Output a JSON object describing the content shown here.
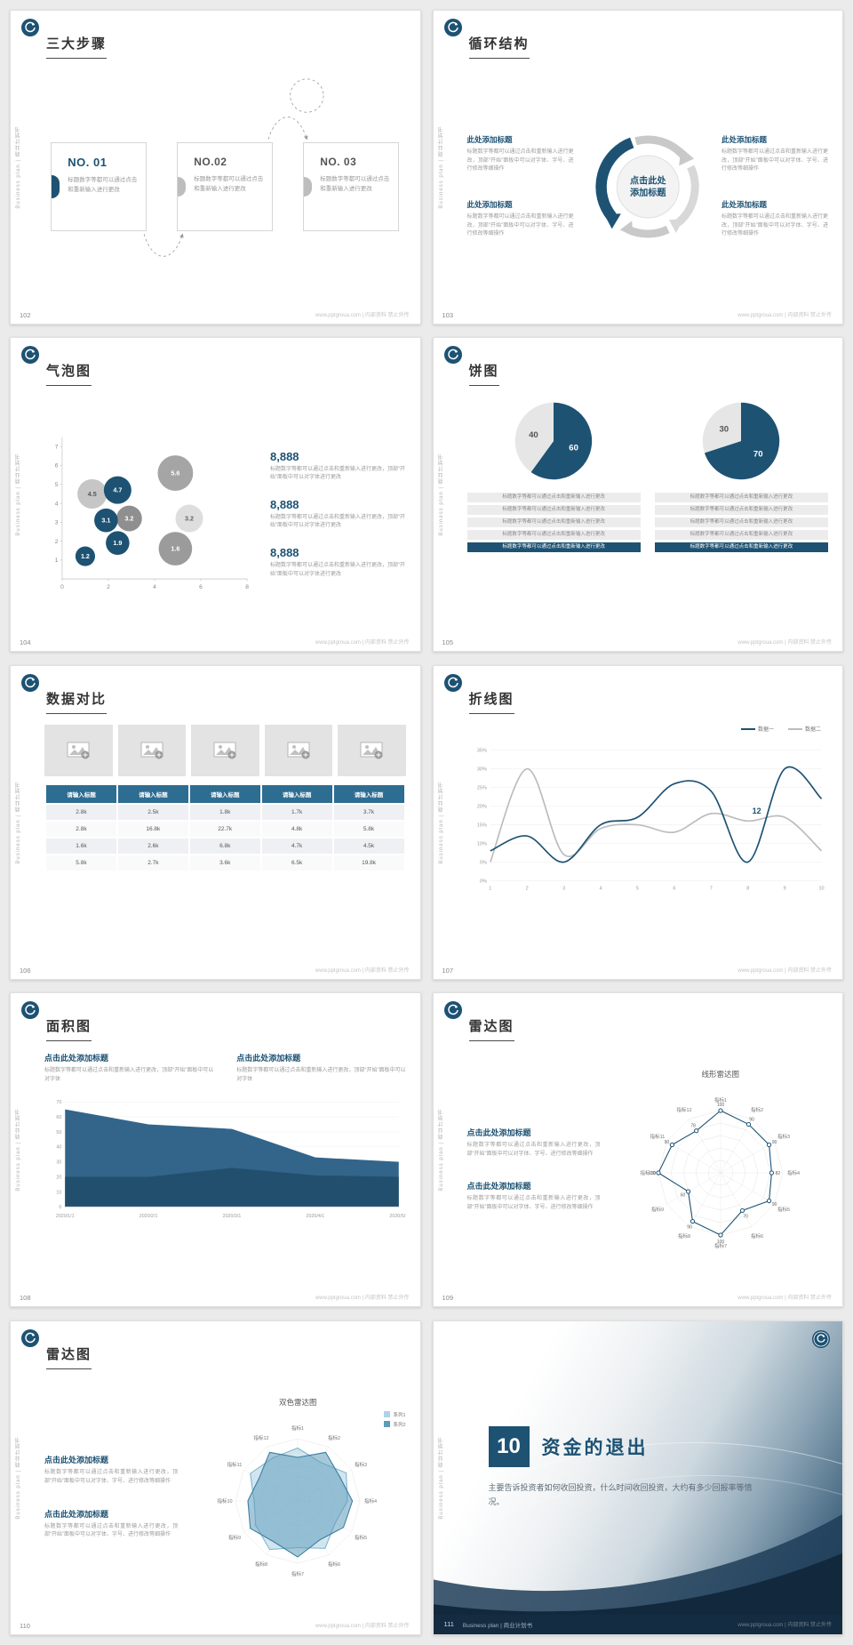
{
  "common": {
    "sidebar_watermark": "Business plan | 商业计划书",
    "footer_watermark": "www.pptgroua.com | 内部资料 禁止外传",
    "colors": {
      "primary": "#1d5273",
      "table_header": "#2e6d92",
      "dark_bar": "#132c41"
    }
  },
  "slides": {
    "s102": {
      "page": "102",
      "title": "三大步骤",
      "steps": [
        {
          "no": "NO. 01",
          "text": "标题数字等都可以通过点击和重新输入进行更改"
        },
        {
          "no": "NO.02",
          "text": "标题数字等都可以通过点击和重新输入进行更改"
        },
        {
          "no": "NO. 03",
          "text": "标题数字等都可以通过点击和重新输入进行更改"
        }
      ]
    },
    "s103": {
      "page": "103",
      "title": "循环结构",
      "center_line1": "点击此处",
      "center_line2": "添加标题",
      "blocks": [
        {
          "heading": "此处添加标题",
          "text": "标题数字等都可以通过点击和重新输入进行更改，顶部“开始”面板中可以对字体、字号、进行修改等细操作"
        },
        {
          "heading": "此处添加标题",
          "text": "标题数字等都可以通过点击和重新输入进行更改，顶部“开始”面板中可以对字体、字号、进行修改等细操作"
        },
        {
          "heading": "此处添加标题",
          "text": "标题数字等都可以通过点击和重新输入进行更改，顶部“开始”面板中可以对字体、字号、进行修改等细操作"
        },
        {
          "heading": "此处添加标题",
          "text": "标题数字等都可以通过点击和重新输入进行更改，顶部“开始”面板中可以对字体、字号、进行修改等细操作"
        }
      ]
    },
    "s104": {
      "page": "104",
      "title": "气泡图",
      "stats": [
        {
          "value": "8,888",
          "text": "标题数字等都可以通过点击和重新输入进行更改，顶部“开始”面板中可以对字体进行更改"
        },
        {
          "value": "8,888",
          "text": "标题数字等都可以通过点击和重新输入进行更改，顶部“开始”面板中可以对字体进行更改"
        },
        {
          "value": "8,888",
          "text": "标题数字等都可以通过点击和重新输入进行更改，顶部“开始”面板中可以对字体进行更改"
        }
      ],
      "chart": {
        "type": "bubble",
        "x_ticks": [
          0,
          2,
          4,
          6,
          8
        ],
        "y_ticks": [
          1,
          2,
          3,
          4,
          5,
          6,
          7
        ],
        "x_max": 8,
        "y_max": 7.5,
        "bubbles": [
          {
            "x": 1.3,
            "y": 4.5,
            "r": 15,
            "value": "4.5",
            "color": "#c6c6c6",
            "text_color": "#555555"
          },
          {
            "x": 2.4,
            "y": 4.7,
            "r": 14,
            "value": "4.7",
            "color": "#1d5273",
            "text_color": "#ffffff"
          },
          {
            "x": 4.9,
            "y": 5.6,
            "r": 18,
            "value": "5.6",
            "color": "#a5a5a5",
            "text_color": "#ffffff"
          },
          {
            "x": 1.9,
            "y": 3.1,
            "r": 12,
            "value": "3.1",
            "color": "#1d5273",
            "text_color": "#ffffff"
          },
          {
            "x": 2.9,
            "y": 3.2,
            "r": 13,
            "value": "3.2",
            "color": "#8f8f8f",
            "text_color": "#ffffff"
          },
          {
            "x": 5.5,
            "y": 3.2,
            "r": 14,
            "value": "3.2",
            "color": "#dedede",
            "text_color": "#666666"
          },
          {
            "x": 2.4,
            "y": 1.9,
            "r": 12,
            "value": "1.9",
            "color": "#1d5273",
            "text_color": "#ffffff"
          },
          {
            "x": 1.0,
            "y": 1.2,
            "r": 10,
            "value": "1.2",
            "color": "#1d5273",
            "text_color": "#ffffff"
          },
          {
            "x": 4.9,
            "y": 1.6,
            "r": 17,
            "value": "1.6",
            "color": "#9b9b9b",
            "text_color": "#ffffff"
          }
        ]
      }
    },
    "s105": {
      "page": "105",
      "title": "饼图",
      "row_text": "标题数字等都可以通过点击和重新输入进行更改",
      "pies": [
        {
          "slices": [
            {
              "value": 60,
              "color": "#1d5273",
              "label_color": "#ffffff"
            },
            {
              "value": 40,
              "color": "#e6e6e6",
              "label_color": "#555555"
            }
          ]
        },
        {
          "slices": [
            {
              "value": 70,
              "color": "#1d5273",
              "label_color": "#ffffff"
            },
            {
              "value": 30,
              "color": "#e6e6e6",
              "label_color": "#555555"
            }
          ]
        }
      ]
    },
    "s106": {
      "page": "106",
      "title": "数据对比",
      "table": {
        "headers": [
          "请输入标题",
          "请输入标题",
          "请输入标题",
          "请输入标题",
          "请输入标题"
        ],
        "rows": [
          [
            "2.8k",
            "2.5k",
            "1.8k",
            "1.7k",
            "3.7k"
          ],
          [
            "2.8k",
            "16.8k",
            "22.7k",
            "4.8k",
            "5.8k"
          ],
          [
            "1.6k",
            "2.6k",
            "6.8k",
            "4.7k",
            "4.5k"
          ],
          [
            "5.8k",
            "2.7k",
            "3.6k",
            "6.5k",
            "19.8k"
          ]
        ]
      }
    },
    "s107": {
      "page": "107",
      "title": "折线图",
      "chart": {
        "type": "line",
        "x": [
          "1",
          "2",
          "3",
          "4",
          "5",
          "6",
          "7",
          "8",
          "9",
          "10"
        ],
        "y_ticks": [
          "0%",
          "5%",
          "10%",
          "15%",
          "20%",
          "25%",
          "30%",
          "35%"
        ],
        "y_max": 35,
        "y_step": 5,
        "series": [
          {
            "name": "数据一",
            "color": "#1d5273",
            "values": [
              8,
              12,
              5,
              15,
              17,
              26,
              24,
              5,
              30,
              22
            ]
          },
          {
            "name": "数据二",
            "color": "#bcbcbc",
            "values": [
              5,
              30,
              7,
              14,
              15,
              13,
              18,
              16,
              17,
              8
            ]
          }
        ],
        "annotation": {
          "text": "12",
          "x_index": 7,
          "y": 18
        }
      }
    },
    "s108": {
      "page": "108",
      "title": "面积图",
      "blocks": [
        {
          "heading": "点击此处添加标题",
          "text": "标题数字等都可以通过点击和重新输入进行更改，顶部“开始”面板中可以对字体"
        },
        {
          "heading": "点击此处添加标题",
          "text": "标题数字等都可以通过点击和重新输入进行更改，顶部“开始”面板中可以对字体"
        }
      ],
      "chart": {
        "type": "area",
        "x_labels": [
          "2020/1/1",
          "2020/2/1",
          "2020/3/1",
          "2020/4/1",
          "2020/5/1"
        ],
        "y_ticks": [
          0,
          10,
          20,
          30,
          40,
          50,
          60,
          70
        ],
        "y_max": 70,
        "series": [
          {
            "color": "#33658a",
            "values": [
              65,
              55,
              52,
              33,
              30
            ]
          },
          {
            "color": "#224f6e",
            "values": [
              20,
              20,
              26,
              21,
              20
            ]
          }
        ]
      }
    },
    "s109": {
      "page": "109",
      "title": "雷达图",
      "chart_title": "线形雷达图",
      "blocks": [
        {
          "heading": "点击此处添加标题",
          "text": "标题数字等都可以通过点击和重新输入进行更改，顶部“开始”面板中可以对字体、字号、进行修改等细操作"
        },
        {
          "heading": "点击此处添加标题",
          "text": "标题数字等都可以通过点击和重新输入进行更改，顶部“开始”面板中可以对字体、字号、进行修改等细操作"
        }
      ],
      "chart": {
        "type": "radar",
        "max": 100,
        "rings": [
          20,
          40,
          60,
          80,
          100
        ],
        "axes": [
          "指标1",
          "指标2",
          "指标3",
          "指标4",
          "指标5",
          "指标6",
          "指标7",
          "指标8",
          "指标9",
          "指标10",
          "指标11",
          "指标12"
        ],
        "series": [
          {
            "color": "#1d5273",
            "values": [
              100,
              90,
              90,
              82,
              90,
              70,
              100,
              90,
              60,
              100,
              90,
              78
            ],
            "markers": true,
            "show_labels": true
          }
        ]
      }
    },
    "s110": {
      "page": "110",
      "title": "雷达图",
      "chart_title": "双色雷达图",
      "blocks": [
        {
          "heading": "点击此处添加标题",
          "text": "标题数字等都可以通过点击和重新输入进行更改，顶部“开始”面板中可以对字体、字号、进行修改等细操作"
        },
        {
          "heading": "点击此处添加标题",
          "text": "标题数字等都可以通过点击和重新输入进行更改，顶部“开始”面板中可以对字体、字号、进行修改等细操作"
        }
      ],
      "chart": {
        "type": "radar",
        "max": 100,
        "rings": [
          20,
          40,
          60,
          80,
          100
        ],
        "axes": [
          "指标1",
          "指标2",
          "指标3",
          "指标4",
          "指标5",
          "指标6",
          "指标7",
          "指标8",
          "指标9",
          "指标10",
          "指标11",
          "指标12"
        ],
        "series": [
          {
            "name": "系列1",
            "color": "#7fb6cf",
            "fill": "#aed4e6",
            "values": [
              85,
              72,
              90,
              80,
              70,
              88,
              75,
              90,
              78,
              70,
              88,
              80
            ]
          },
          {
            "name": "系列2",
            "color": "#3d7fa0",
            "fill": "#5e9cbb",
            "values": [
              70,
              90,
              78,
              88,
              85,
              72,
              90,
              76,
              88,
              80,
              72,
              90
            ]
          }
        ]
      }
    },
    "s111": {
      "page": "111",
      "number": "10",
      "title": "资金的退出",
      "body": "主要告诉投资者如何收回投资，什么时间收回投资，大约有多少回报率等情况。",
      "footer_label": "Business plan | 商业计划书"
    }
  }
}
